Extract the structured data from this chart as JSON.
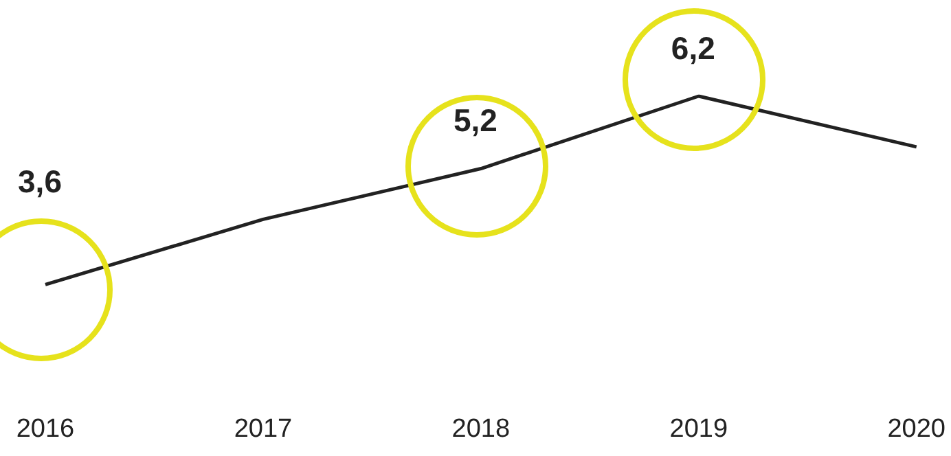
{
  "chart_data": {
    "type": "line",
    "categories": [
      "2016",
      "2017",
      "2018",
      "2019",
      "2020"
    ],
    "series": [
      {
        "color": "#222222",
        "values": [
          3.6,
          4.5,
          5.2,
          6.2,
          5.5
        ],
        "value_labels": [
          "3,6",
          null,
          "5,2",
          "6,2",
          null
        ]
      }
    ],
    "marker": "none",
    "grid": false,
    "legend": false,
    "tick_labels": "x"
  }
}
